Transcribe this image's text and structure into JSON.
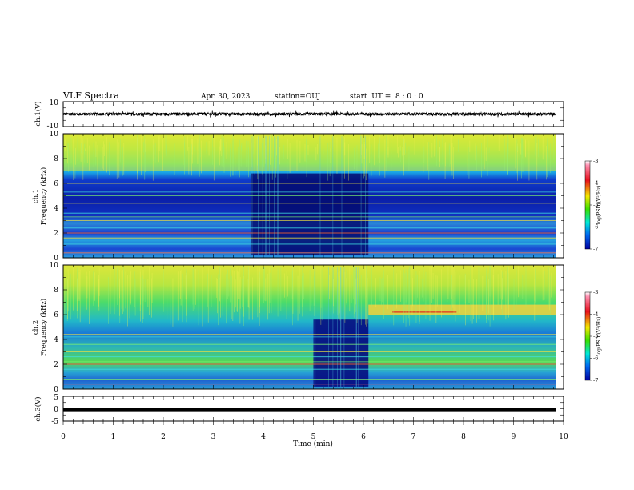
{
  "header": {
    "title": "VLF Spectra",
    "date": "Apr. 30, 2023",
    "station": "station=OUJ",
    "start": "start  UT =  8 : 0 : 0"
  },
  "chart_data": [
    {
      "id": "ch1-waveform",
      "type": "line",
      "ylabel": "ch.1(V)",
      "ylim": [
        -10,
        10
      ],
      "yticks": [
        "10",
        "-10"
      ],
      "xlim": [
        0,
        10
      ],
      "trace_range": [
        0,
        9.85
      ],
      "trace_level": 0,
      "trace_amplitude": 1.2
    },
    {
      "id": "ch1-spectrogram",
      "type": "heatmap",
      "ylabel_line1": "ch.1",
      "ylabel_line2": "Frequency (kHz)",
      "ylim": [
        0,
        10
      ],
      "yticks": [
        "0",
        "2",
        "4",
        "6",
        "8",
        "10"
      ],
      "xlim": [
        0,
        10
      ],
      "data_range": [
        0,
        9.85
      ],
      "quiet_interval": [
        3.75,
        6.1
      ],
      "dark_band_kHz": [
        2.8,
        6.8
      ],
      "high_band_kHz": [
        7.0,
        10.0
      ],
      "line_frequencies_kHz": [
        0.4,
        1.1,
        1.6,
        2.0,
        2.4,
        3.0,
        3.3,
        3.6,
        4.4,
        5.0,
        5.3,
        6.0
      ],
      "colorbar": {
        "label": "log(PSD)(V²/Hz)",
        "ticks": [
          "-3",
          "-4",
          "-5",
          "-6",
          "-7"
        ],
        "range": [
          -7,
          -3
        ]
      }
    },
    {
      "id": "ch2-spectrogram",
      "type": "heatmap",
      "ylabel_line1": "ch.2",
      "ylabel_line2": "Frequency (kHz)",
      "ylim": [
        0,
        10
      ],
      "yticks": [
        "0",
        "2",
        "4",
        "6",
        "8",
        "10"
      ],
      "xlim": [
        0,
        10
      ],
      "data_range": [
        0,
        9.85
      ],
      "quiet_interval": [
        5.0,
        6.1
      ],
      "emission_band_kHz": [
        6.0,
        6.8
      ],
      "emission_start": 6.1,
      "line_frequencies_kHz": [
        0.8,
        1.6,
        2.0,
        2.2,
        2.6,
        3.0,
        3.6,
        4.2,
        4.4,
        5.0
      ],
      "colorbar": {
        "label": "log(PSD)(V²/Hz)",
        "ticks": [
          "-3",
          "-4",
          "-5",
          "-6",
          "-7"
        ],
        "range": [
          -7,
          -3
        ]
      }
    },
    {
      "id": "ch3-waveform",
      "type": "line",
      "ylabel": "ch.3(V)",
      "ylim": [
        -5,
        5
      ],
      "yticks": [
        "5",
        "0",
        "-5"
      ],
      "xlim": [
        0,
        10
      ],
      "trace_range": [
        0,
        9.85
      ],
      "trace_level": -0.35,
      "xlabel": "Time (min)",
      "xticks": [
        "0",
        "1",
        "2",
        "3",
        "4",
        "5",
        "6",
        "7",
        "8",
        "9",
        "10"
      ]
    }
  ]
}
